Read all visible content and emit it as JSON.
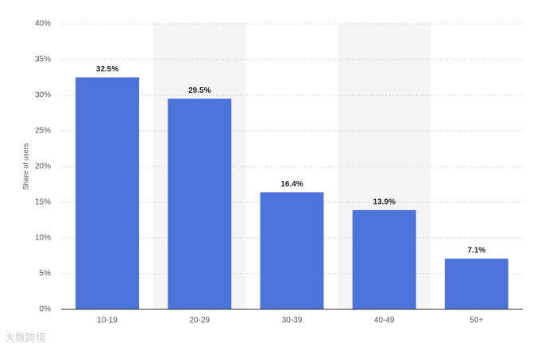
{
  "chart_data": {
    "type": "bar",
    "y_label": "Share of users",
    "categories": [
      "10-19",
      "20-29",
      "30-39",
      "40-49",
      "50+"
    ],
    "values": [
      32.5,
      29.5,
      16.4,
      13.9,
      7.1
    ],
    "value_labels": [
      "32.5%",
      "29.5%",
      "16.4%",
      "13.9%",
      "7.1%"
    ],
    "color": "#4c73da",
    "ylim": [
      0,
      40
    ],
    "yticks": [
      {
        "value": 0,
        "label": "0%"
      },
      {
        "value": 5,
        "label": "5%"
      },
      {
        "value": 10,
        "label": "10%"
      },
      {
        "value": 15,
        "label": "15%"
      },
      {
        "value": 20,
        "label": "20%"
      },
      {
        "value": 25,
        "label": "25%"
      },
      {
        "value": 30,
        "label": "30%"
      },
      {
        "value": 35,
        "label": "35%"
      },
      {
        "value": 40,
        "label": "40%"
      }
    ],
    "grid": true,
    "watermark": "大数跨境"
  }
}
